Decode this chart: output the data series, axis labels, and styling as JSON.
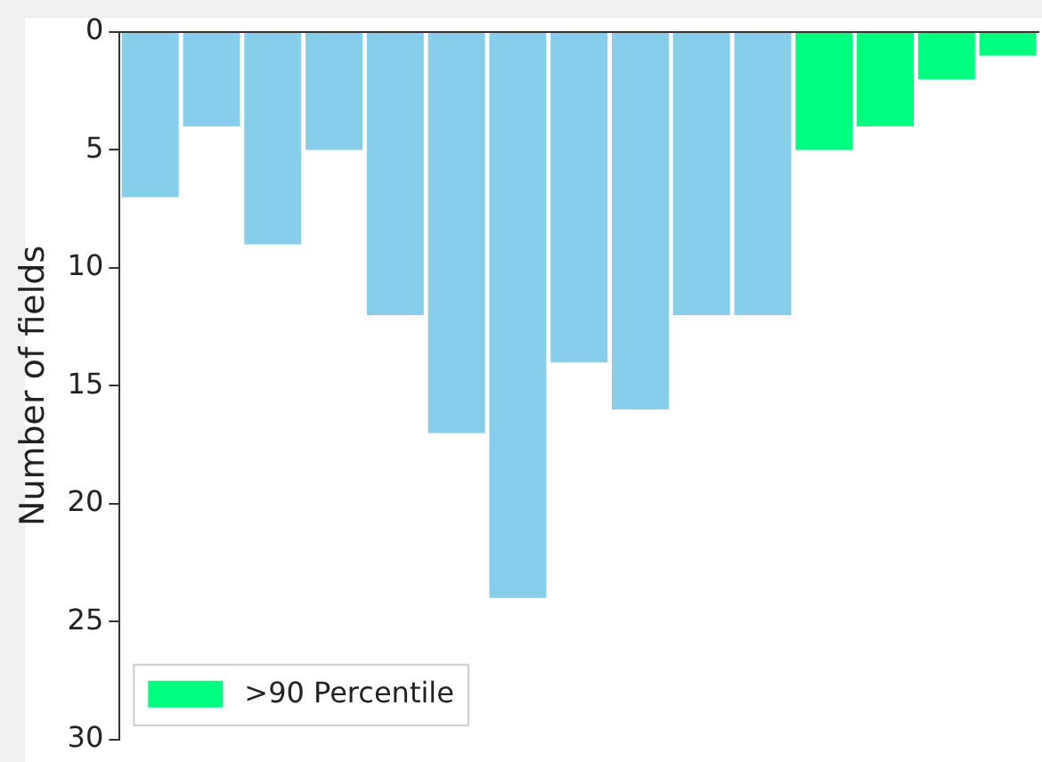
{
  "chart_data": {
    "type": "bar",
    "ylabel": "Number of fields",
    "categories": [
      null,
      null,
      null,
      null,
      null,
      null,
      null,
      null,
      null,
      null,
      null,
      null,
      null,
      null,
      null
    ],
    "series": [
      {
        "color": "#87ceeb",
        "values": [
          7,
          4,
          9,
          5,
          12,
          17,
          24,
          14,
          16,
          12,
          12,
          null,
          null,
          null,
          null
        ]
      },
      {
        "name": ">90 Percentile",
        "color": "#00ff7f",
        "values": [
          null,
          null,
          null,
          null,
          null,
          null,
          null,
          null,
          null,
          null,
          null,
          5,
          4,
          2,
          1
        ]
      }
    ],
    "stacked": true,
    "ylim": [
      30,
      0
    ],
    "yticks": [
      0,
      5,
      10,
      15,
      20,
      25,
      30
    ],
    "tick_labels": "y",
    "grid": false,
    "legend": "bottom left"
  }
}
